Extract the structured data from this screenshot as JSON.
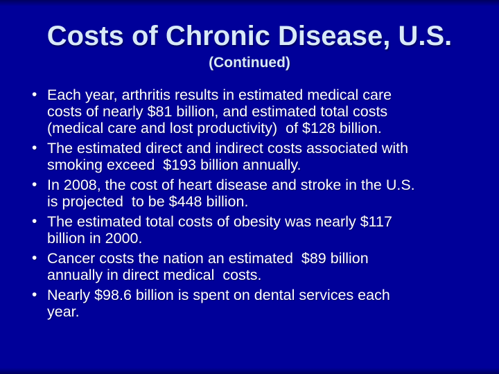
{
  "slide": {
    "title": "Costs of Chronic Disease, U.S.",
    "subtitle": "(Continued)",
    "bullet_glyph": "•",
    "colors": {
      "background": "#000099",
      "background_edge": "#00005e",
      "title_text": "#d8e9f8",
      "body_text": "#ffffff"
    },
    "bullets": [
      {
        "lines": [
          "Each year, arthritis results in estimated medical care",
          "costs of nearly $81 billion, and estimated total costs",
          "(medical care and lost productivity)  of $128 billion."
        ]
      },
      {
        "lines": [
          "The estimated direct and indirect costs associated with",
          "smoking exceed  $193 billion annually."
        ]
      },
      {
        "lines": [
          "In 2008, the cost of heart disease and stroke in the U.S.",
          "is projected  to be $448 billion."
        ]
      },
      {
        "lines": [
          "The estimated total costs of obesity was nearly $117",
          "billion in 2000."
        ]
      },
      {
        "lines": [
          "Cancer costs the nation an estimated  $89 billion",
          "annually in direct medical  costs."
        ]
      },
      {
        "lines": [
          "Nearly $98.6 billion is spent on dental services each",
          "year."
        ]
      }
    ]
  }
}
